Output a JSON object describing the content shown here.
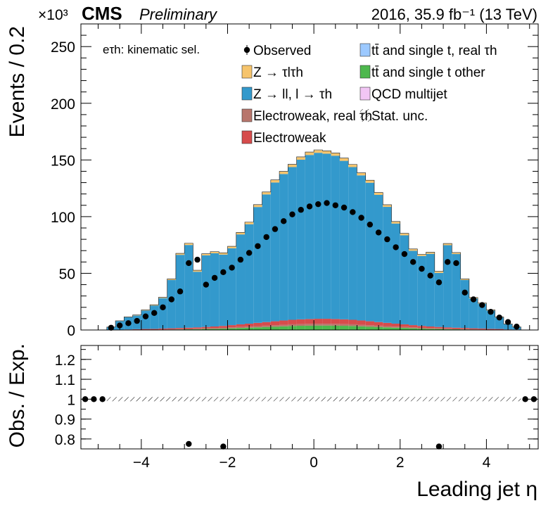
{
  "header": {
    "exponent": "×10³",
    "cms": "CMS",
    "preliminary": "Preliminary",
    "lumi": "2016, 35.9 fb⁻¹ (13 TeV)"
  },
  "chart_data": {
    "type": "bar",
    "stacked": true,
    "x_label": "Leading jet η",
    "y_label_top": "Events / 0.2",
    "y_label_bottom": "Obs. / Exp.",
    "y_scale_note": "×10³",
    "annotation": "eτh: kinematic sel.",
    "x_range": [
      -5.4,
      5.2
    ],
    "x_ticks": [
      "−4",
      "−2",
      "0",
      "2",
      "4"
    ],
    "y_range_top": [
      0,
      270
    ],
    "y_ticks_top": [
      "0",
      "50",
      "100",
      "150",
      "200",
      "250"
    ],
    "y_range_bottom": [
      0.75,
      1.27
    ],
    "y_ticks_bottom": [
      "0.8",
      "0.9",
      "1",
      "1.1",
      "1.2"
    ],
    "legend_position": "top",
    "legend": [
      {
        "key": "observed",
        "label": "Observed",
        "color": "#000000"
      },
      {
        "key": "ttbar_real",
        "label": "tt̄ and single t, real τh",
        "color": "#9cc9ff"
      },
      {
        "key": "ztautau",
        "label": "Z → τlτh",
        "color": "#f6c46c"
      },
      {
        "key": "ttbar_other",
        "label": "tt̄ and single t other",
        "color": "#4db84d"
      },
      {
        "key": "zll",
        "label": "Z → ll, l → τh",
        "color": "#3399cc"
      },
      {
        "key": "qcd",
        "label": "QCD multijet",
        "color": "#f2c6f5"
      },
      {
        "key": "ew_real",
        "label": "Electroweak, real τh",
        "color": "#b8766c"
      },
      {
        "key": "stat_unc",
        "label": "Stat. unc.",
        "color": "#000000"
      },
      {
        "key": "ew",
        "label": "Electroweak",
        "color": "#d64c4c"
      }
    ],
    "bin_edges": [
      -4.8,
      -4.6,
      -4.4,
      -4.2,
      -4.0,
      -3.8,
      -3.6,
      -3.4,
      -3.2,
      -3.0,
      -2.8,
      -2.6,
      -2.4,
      -2.2,
      -2.0,
      -1.8,
      -1.6,
      -1.4,
      -1.2,
      -1.0,
      -0.8,
      -0.6,
      -0.4,
      -0.2,
      0.0,
      0.2,
      0.4,
      0.6,
      0.8,
      1.0,
      1.2,
      1.4,
      1.6,
      1.8,
      2.0,
      2.2,
      2.4,
      2.6,
      2.8,
      3.0,
      3.2,
      3.4,
      3.6,
      3.8,
      4.0,
      4.2,
      4.4,
      4.6,
      4.8
    ],
    "stack_components": [
      "ttbar_other",
      "ew_real",
      "ew",
      "zll",
      "ztautau",
      "ttbar_real"
    ],
    "stack_values": {
      "ttbar_other": [
        0,
        0,
        0.1,
        0.1,
        0.2,
        0.2,
        0.3,
        0.4,
        0.5,
        0.6,
        0.7,
        0.9,
        1.0,
        1.2,
        1.5,
        1.8,
        2.0,
        2.3,
        2.6,
        2.9,
        3.2,
        3.5,
        3.7,
        3.8,
        3.9,
        3.9,
        3.8,
        3.7,
        3.5,
        3.2,
        2.9,
        2.6,
        2.3,
        2.0,
        1.8,
        1.5,
        1.2,
        1.0,
        0.9,
        0.7,
        0.6,
        0.5,
        0.4,
        0.3,
        0.2,
        0.2,
        0.1,
        0.1
      ],
      "ew_real": [
        0,
        0,
        0,
        0.1,
        0.1,
        0.1,
        0.2,
        0.2,
        0.3,
        0.3,
        0.4,
        0.5,
        0.6,
        0.7,
        0.8,
        0.9,
        1.0,
        1.1,
        1.2,
        1.3,
        1.4,
        1.5,
        1.5,
        1.6,
        1.6,
        1.6,
        1.6,
        1.5,
        1.5,
        1.4,
        1.3,
        1.2,
        1.1,
        1.0,
        0.9,
        0.8,
        0.7,
        0.6,
        0.5,
        0.4,
        0.3,
        0.3,
        0.2,
        0.2,
        0.1,
        0.1,
        0,
        0
      ],
      "ew": [
        0.2,
        0.3,
        0.4,
        0.5,
        0.6,
        0.7,
        0.8,
        0.9,
        1.0,
        1.1,
        1.2,
        1.3,
        1.5,
        1.7,
        2.0,
        2.3,
        2.6,
        2.9,
        3.2,
        3.5,
        3.8,
        4.0,
        4.2,
        4.3,
        4.4,
        4.4,
        4.3,
        4.2,
        4.0,
        3.8,
        3.5,
        3.2,
        2.9,
        2.6,
        2.3,
        2.0,
        1.7,
        1.5,
        1.3,
        1.2,
        1.1,
        1.0,
        0.9,
        0.8,
        0.7,
        0.6,
        0.4,
        0.3
      ],
      "zll": [
        2.3,
        7.6,
        10.8,
        12.1,
        16.3,
        20.6,
        26.8,
        42.6,
        64.5,
        73.0,
        49.1,
        63.2,
        64.6,
        62.9,
        67.8,
        79.3,
        87.7,
        102.2,
        112.6,
        122.4,
        129.2,
        134.7,
        140.8,
        144.7,
        146.4,
        145.6,
        144.0,
        139.8,
        134.7,
        128.0,
        122.2,
        112.2,
        102.3,
        88.3,
        78.5,
        65.6,
        61.7,
        64.1,
        47.7,
        72.5,
        65.0,
        42.3,
        26.4,
        22.0,
        16.2,
        10.2,
        4.6,
        2.2
      ],
      "ztautau": [
        0.1,
        0.2,
        0.3,
        0.4,
        0.5,
        0.6,
        0.7,
        0.9,
        1.2,
        1.4,
        1.2,
        1.3,
        1.4,
        1.5,
        1.6,
        1.7,
        1.8,
        1.9,
        2.0,
        2.1,
        2.2,
        2.3,
        2.3,
        2.4,
        2.4,
        2.4,
        2.3,
        2.3,
        2.2,
        2.1,
        2.0,
        1.9,
        1.8,
        1.7,
        1.6,
        1.5,
        1.4,
        1.3,
        1.2,
        1.4,
        1.2,
        0.9,
        0.7,
        0.6,
        0.5,
        0.4,
        0.3,
        0.2
      ],
      "ttbar_real": [
        0,
        0,
        0,
        0,
        0,
        0,
        0.1,
        0.1,
        0.1,
        0.1,
        0.1,
        0.1,
        0.1,
        0.1,
        0.1,
        0.1,
        0.1,
        0.2,
        0.2,
        0.2,
        0.2,
        0.2,
        0.2,
        0.2,
        0.2,
        0.2,
        0.2,
        0.2,
        0.2,
        0.2,
        0.2,
        0.2,
        0.1,
        0.1,
        0.1,
        0.1,
        0.1,
        0.1,
        0.1,
        0.1,
        0.1,
        0.1,
        0.1,
        0,
        0,
        0,
        0,
        0
      ]
    },
    "observed": {
      "x": [
        -4.7,
        -4.5,
        -4.3,
        -4.1,
        -3.9,
        -3.7,
        -3.5,
        -3.3,
        -3.1,
        -2.9,
        -2.7,
        -2.5,
        -2.3,
        -2.1,
        -1.9,
        -1.7,
        -1.5,
        -1.3,
        -1.1,
        -0.9,
        -0.7,
        -0.5,
        -0.3,
        -0.1,
        0.1,
        0.3,
        0.5,
        0.7,
        0.9,
        1.1,
        1.3,
        1.5,
        1.7,
        1.9,
        2.1,
        2.3,
        2.5,
        2.7,
        2.9,
        3.1,
        3.3,
        3.5,
        3.7,
        3.9,
        4.1,
        4.3,
        4.5,
        4.7
      ],
      "y": [
        2,
        4,
        6,
        8,
        12,
        15,
        20,
        27,
        34,
        59,
        62,
        40,
        46,
        51,
        55,
        62,
        68,
        74,
        82,
        89,
        96,
        102,
        106,
        109,
        111,
        112,
        110,
        108,
        104,
        99,
        93,
        86,
        80,
        73,
        67,
        60,
        54,
        48,
        42,
        60,
        59,
        33,
        27,
        22,
        16,
        11,
        7,
        3
      ]
    },
    "ratio": {
      "x": [
        -5.3,
        -5.1,
        -4.9,
        -2.9,
        -2.1,
        2.9,
        4.9,
        5.1
      ],
      "y": [
        1.0,
        1.0,
        1.0,
        0.775,
        0.762,
        0.762,
        1.0,
        1.0
      ]
    }
  }
}
